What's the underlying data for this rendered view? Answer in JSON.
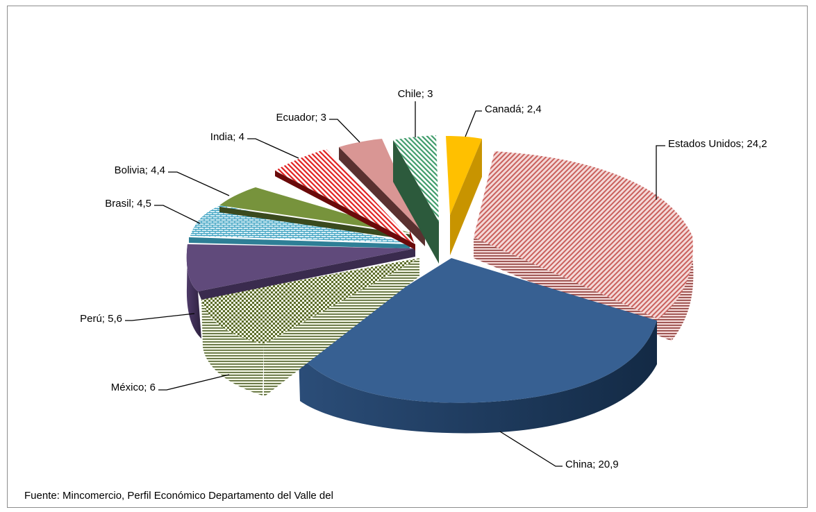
{
  "chart_data": {
    "type": "pie",
    "title": "",
    "categories": [
      "Estados Unidos",
      "China",
      "México",
      "Perú",
      "Brasil",
      "Bolivia",
      "India",
      "Ecuador",
      "Chile",
      "Canadá"
    ],
    "values": [
      24.2,
      20.9,
      6,
      5.6,
      4.5,
      4.4,
      4,
      3,
      3,
      2.4
    ],
    "data_labels": [
      "Estados Unidos; 24,2",
      "China; 20,9",
      "México; 6",
      "Perú; 5,6",
      "Brasil; 4,5",
      "Bolivia; 4,4",
      "India; 4",
      "Ecuador; 3",
      "Chile; 3",
      "Canadá; 2,4"
    ],
    "colors": [
      "#d99694",
      "#376092",
      "#c3d69b",
      "#604a7b",
      "#93cddd",
      "#77933c",
      "#ff0000",
      "#d99694",
      "#77c49a",
      "#ffc000"
    ],
    "style": "3d-exploded",
    "legend": "none"
  },
  "source_note": "Fuente: Mincomercio, Perfil Económico Departamento del Valle del"
}
